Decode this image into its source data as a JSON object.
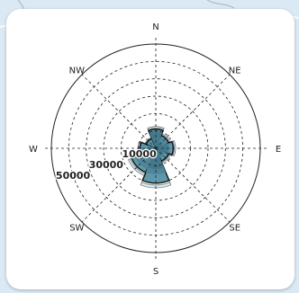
{
  "chart_data": {
    "type": "rose",
    "directions": [
      "N",
      "NE",
      "E",
      "SE",
      "S",
      "SW",
      "W",
      "NW"
    ],
    "ring_labels": [
      "10000",
      "30000",
      "50000"
    ],
    "rmax": 60000,
    "rings": [
      10000,
      20000,
      30000,
      40000,
      50000,
      60000
    ],
    "series": [
      {
        "values": [
          11000,
          8000,
          10000,
          8000,
          20000,
          15000,
          9000,
          6000
        ]
      },
      {
        "values": [
          8000,
          7000,
          8000,
          6000,
          15000,
          13000,
          5000,
          2000
        ]
      },
      {
        "values": [
          10000,
          4000,
          7000,
          5000,
          12000,
          7000,
          4000,
          0
        ]
      }
    ],
    "colors": {
      "outer": "#d7ecf2",
      "ring_fill": "#e9f2d2",
      "layer1": "#5d98ab",
      "layer2": "#4f8799",
      "layer3": "#43798b",
      "outline": "#111111"
    }
  }
}
